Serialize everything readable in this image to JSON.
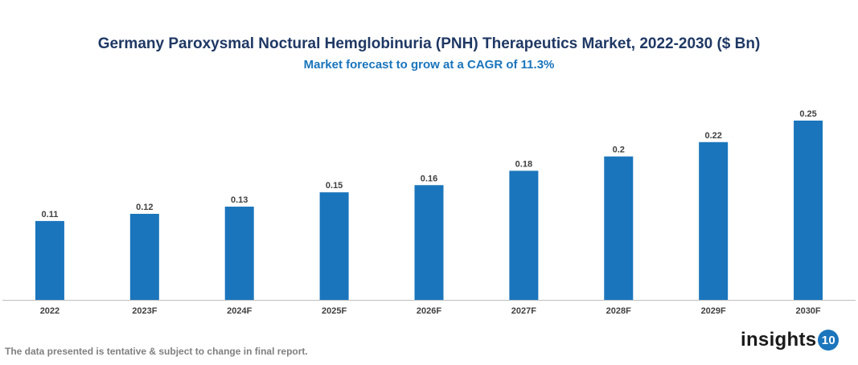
{
  "chart_data": {
    "type": "bar",
    "title": "Germany Paroxysmal Noctural Hemglobinuria (PNH) Therapeutics Market, 2022-2030 ($ Bn)",
    "subtitle": "Market forecast to grow at a CAGR of 11.3%",
    "categories": [
      "2022",
      "2023F",
      "2024F",
      "2025F",
      "2026F",
      "2027F",
      "2028F",
      "2029F",
      "2030F"
    ],
    "values": [
      0.11,
      0.12,
      0.13,
      0.15,
      0.16,
      0.18,
      0.2,
      0.22,
      0.25
    ],
    "data_labels": [
      "0.11",
      "0.12",
      "0.13",
      "0.15",
      "0.16",
      "0.18",
      "0.2",
      "0.22",
      "0.25"
    ],
    "xlabel": "",
    "ylabel": "",
    "ylim": [
      0,
      0.25
    ],
    "grid": false,
    "bar_color": "#1a75bc"
  },
  "footnote": "The data presented is tentative & subject to change in final report.",
  "logo": {
    "text": "insights",
    "badge": "10"
  }
}
